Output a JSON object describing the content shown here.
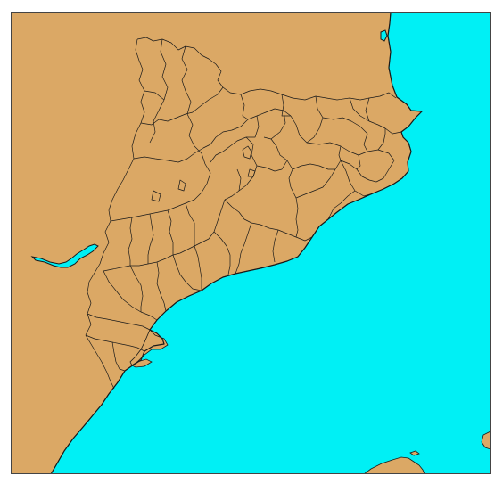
{
  "map": {
    "style": {
      "land_color": "#DBA865",
      "sea_color": "#00F0F5",
      "border_color": "#1A1A1A",
      "frame_color": "#444444"
    },
    "features": {
      "land": "catalonia-mainland",
      "sea": "mediterranean-sea",
      "river": "ebro-river-reservoir",
      "delta": "ebro-delta",
      "island": "mallorca-north-tip",
      "subdivisions": "comarca-borders"
    }
  }
}
